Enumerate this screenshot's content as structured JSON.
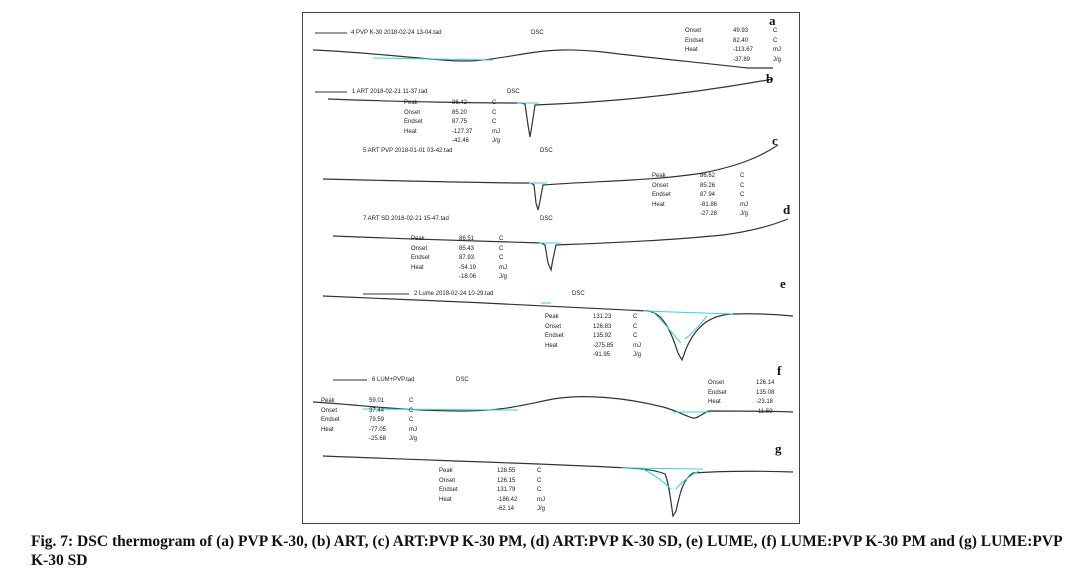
{
  "caption": "Fig. 7: DSC thermogram of (a) PVP K-30, (b) ART, (c) ART:PVP K-30 PM, (d) ART:PVP K-30 SD, (e) LUME, (f) LUME:PVP K-30 PM and (g) LUME:PVP K-30 SD",
  "panels": [
    {
      "letter": "a",
      "file": "4 PVP K-30 2018-02-24 13-04.tad",
      "mode": "DSC",
      "params": [
        {
          "name": "Onset",
          "value": "49.93",
          "unit": "C"
        },
        {
          "name": "Endset",
          "value": "82.40",
          "unit": "C"
        },
        {
          "name": "Heat",
          "value": "-113.67",
          "unit": "mJ"
        },
        {
          "name": "",
          "value": "-37.89",
          "unit": "J/g"
        }
      ]
    },
    {
      "letter": "b",
      "file": "1 ART 2018-02-21 11-37.tad",
      "mode": "DSC",
      "params": [
        {
          "name": "Peak",
          "value": "86.42",
          "unit": "C"
        },
        {
          "name": "Onset",
          "value": "85.20",
          "unit": "C"
        },
        {
          "name": "Endset",
          "value": "87.75",
          "unit": "C"
        },
        {
          "name": "Heat",
          "value": "-127.37",
          "unit": "mJ"
        },
        {
          "name": "",
          "value": "-42.46",
          "unit": "J/g"
        }
      ]
    },
    {
      "letter": "c",
      "file": "5 ART PVP 2018-01-01 03-42.tad",
      "mode": "DSC",
      "params": [
        {
          "name": "Peak",
          "value": "86.62",
          "unit": "C"
        },
        {
          "name": "Onset",
          "value": "85.26",
          "unit": "C"
        },
        {
          "name": "Endset",
          "value": "87.94",
          "unit": "C"
        },
        {
          "name": "Heat",
          "value": "-81.86",
          "unit": "mJ"
        },
        {
          "name": "",
          "value": "-27.28",
          "unit": "J/g"
        }
      ]
    },
    {
      "letter": "d",
      "file": "7 ART SD 2018-02-21 15-47.tad",
      "mode": "DSC",
      "params": [
        {
          "name": "Peak",
          "value": "86.51",
          "unit": "C"
        },
        {
          "name": "Onset",
          "value": "85.43",
          "unit": "C"
        },
        {
          "name": "Endset",
          "value": "87.93",
          "unit": "C"
        },
        {
          "name": "Heat",
          "value": "-54.19",
          "unit": "mJ"
        },
        {
          "name": "",
          "value": "-18.06",
          "unit": "J/g"
        }
      ]
    },
    {
      "letter": "e",
      "file": "2 Lume 2018-02-24 10-29.tad",
      "mode": "DSC",
      "params": [
        {
          "name": "Peak",
          "value": "131.23",
          "unit": "C"
        },
        {
          "name": "Onset",
          "value": "126.83",
          "unit": "C"
        },
        {
          "name": "Endset",
          "value": "135.92",
          "unit": "C"
        },
        {
          "name": "Heat",
          "value": "-275.85",
          "unit": "mJ"
        },
        {
          "name": "",
          "value": "-91.95",
          "unit": "J/g"
        }
      ]
    },
    {
      "letter": "f",
      "file": "6 LUM+PVP.tad",
      "mode": "DSC",
      "params": [
        {
          "name": "Peak",
          "value": "59.01",
          "unit": "C"
        },
        {
          "name": "Onset",
          "value": "37.44",
          "unit": "C"
        },
        {
          "name": "Endset",
          "value": "79.59",
          "unit": "C"
        },
        {
          "name": "Heat",
          "value": "-77.05",
          "unit": "mJ"
        },
        {
          "name": "",
          "value": "-25.68",
          "unit": "J/g"
        }
      ],
      "params2": [
        {
          "name": "Onset",
          "value": "126.14",
          "unit": ""
        },
        {
          "name": "Endset",
          "value": "135.08",
          "unit": ""
        },
        {
          "name": "Heat",
          "value": "-23.18",
          "unit": ""
        },
        {
          "name": "",
          "value": "-11.59",
          "unit": ""
        }
      ]
    },
    {
      "letter": "g",
      "file": "",
      "mode": "",
      "params": [
        {
          "name": "Peak",
          "value": "128.55",
          "unit": "C"
        },
        {
          "name": "Onset",
          "value": "126.15",
          "unit": "C"
        },
        {
          "name": "Endset",
          "value": "131.79",
          "unit": "C"
        },
        {
          "name": "Heat",
          "value": "-186.42",
          "unit": "mJ"
        },
        {
          "name": "",
          "value": "-62.14",
          "unit": "J/g"
        }
      ]
    }
  ],
  "colors": {
    "trace": "#333333",
    "baseline": "#33d6e0"
  }
}
